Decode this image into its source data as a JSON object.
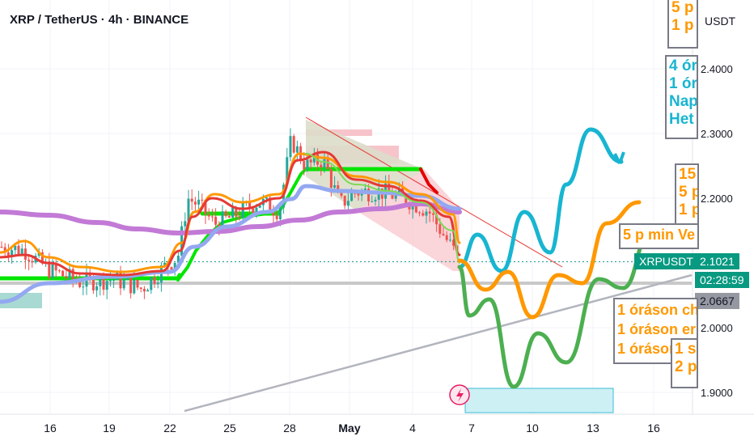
{
  "header": {
    "title": "XRP / TetherUS · 4h · BINANCE",
    "currency": "USDT"
  },
  "price_tags": {
    "symbol": "XRPUSDT",
    "last_price": "2.1021",
    "countdown": "02:28:59",
    "level": "2.0667"
  },
  "annotations": {
    "orange_top": [
      "5 p",
      "1 p"
    ],
    "blue": [
      "4 ór",
      "1 ór",
      "Nap",
      "Het"
    ],
    "orange_right": [
      "15",
      "5 p",
      "1 p"
    ],
    "orange_mid": "5 p min Ve",
    "orange_bottom": [
      "1 óráson ch",
      "1 óráson er",
      "1 óráson re"
    ],
    "orange_small": [
      "1 s",
      "2 p"
    ]
  },
  "colors": {
    "up": "#26a69a",
    "down": "#ef5350",
    "price_tag": "#089981",
    "level_tag": "#787b86",
    "green_line": "#00e600",
    "purple_ma": "#c27ad6",
    "blue_ma": "#93a8f0",
    "orange_ma": "#ff9800",
    "red_ma": "#e53935",
    "forecast_blue": "#18b5d1",
    "forecast_orange": "#ff9800",
    "forecast_green": "#4caf50"
  },
  "chart_data": {
    "type": "candlestick",
    "y_ticks": [
      "2.4000",
      "2.3000",
      "2.2000",
      "2.1000",
      "2.0000",
      "1.9000"
    ],
    "x_ticks": [
      "16",
      "19",
      "22",
      "25",
      "28",
      "May",
      "4",
      "7",
      "10",
      "13",
      "16"
    ],
    "ylim": [
      1.87,
      2.495
    ],
    "last_price": 2.1021,
    "level": 2.0667
  }
}
